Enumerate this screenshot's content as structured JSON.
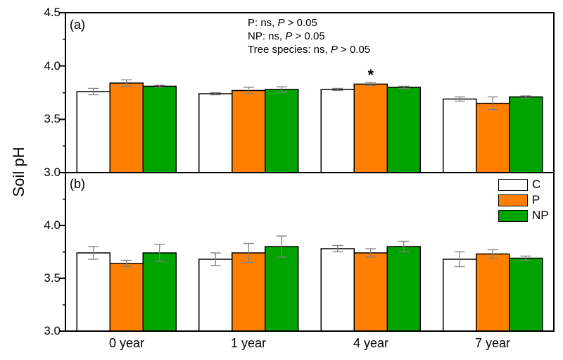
{
  "figure": {
    "ylabel": "Soil pH"
  },
  "annotations": [
    {
      "pre": "P: ns, ",
      "italic": "P",
      "post": " > 0.05"
    },
    {
      "pre": "NP: ns, ",
      "italic": "P",
      "post": " > 0.05"
    },
    {
      "pre": "Tree species: ns, ",
      "italic": "P",
      "post": " > 0.05"
    }
  ],
  "chart_data": {
    "type": "bar",
    "categories": [
      "0 year",
      "1 year",
      "4 year",
      "7 year"
    ],
    "ylabel": "Soil pH",
    "colors": {
      "C": "#FFFFFF",
      "P": "#FF8000",
      "NP": "#00A400"
    },
    "bar_border_color": "#000000",
    "error_bar_color": "#808080",
    "legend": {
      "entries": [
        "C",
        "P",
        "NP"
      ],
      "position": "top-right of panel (b)"
    },
    "panels": [
      {
        "label": "(a)",
        "ylim": [
          3.0,
          4.5
        ],
        "yticks_major": [
          3.0,
          3.5,
          4.0,
          4.5
        ],
        "yticks_minor": [
          3.25,
          3.75,
          4.25
        ],
        "tick_labels": [
          "4.5",
          "4.0",
          "3.5",
          "3.0"
        ],
        "series": [
          {
            "name": "C",
            "values": [
              3.76,
              3.74,
              3.78,
              3.69
            ],
            "errors": [
              0.03,
              0.01,
              0.01,
              0.02
            ]
          },
          {
            "name": "P",
            "values": [
              3.84,
              3.77,
              3.83,
              3.65
            ],
            "errors": [
              0.03,
              0.03,
              0.015,
              0.06
            ]
          },
          {
            "name": "NP",
            "values": [
              3.81,
              3.78,
              3.8,
              3.71
            ],
            "errors": [
              0.01,
              0.025,
              0.01,
              0.01
            ]
          }
        ],
        "significance": {
          "category": "4 year",
          "series": "P",
          "symbol": "*"
        }
      },
      {
        "label": "(b)",
        "ylim": [
          3.0,
          4.5
        ],
        "yticks_major": [
          3.0,
          3.5,
          4.0
        ],
        "yticks_minor": [
          3.25,
          3.75,
          4.25
        ],
        "tick_labels": [
          "4.0",
          "3.5",
          "3.0"
        ],
        "series": [
          {
            "name": "C",
            "values": [
              3.74,
              3.68,
              3.78,
              3.68
            ],
            "errors": [
              0.06,
              0.06,
              0.03,
              0.07
            ]
          },
          {
            "name": "P",
            "values": [
              3.64,
              3.74,
              3.74,
              3.73
            ],
            "errors": [
              0.03,
              0.09,
              0.04,
              0.04
            ]
          },
          {
            "name": "NP",
            "values": [
              3.74,
              3.8,
              3.8,
              3.69
            ],
            "errors": [
              0.08,
              0.1,
              0.05,
              0.02
            ]
          }
        ],
        "significance": null
      }
    ]
  }
}
